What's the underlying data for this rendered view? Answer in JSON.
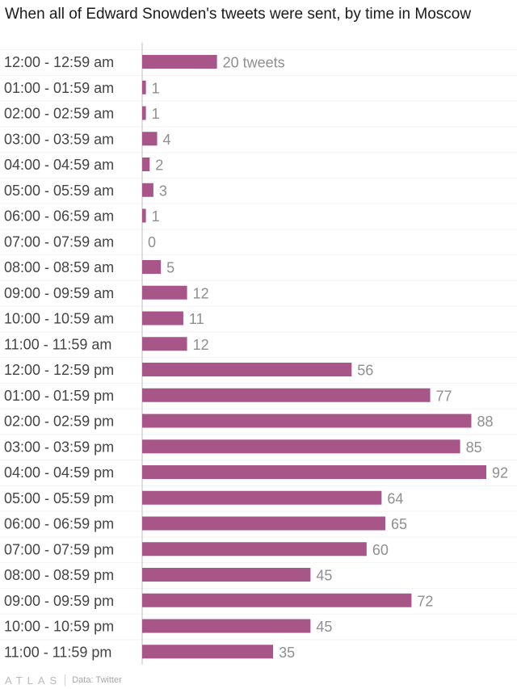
{
  "chart_data": {
    "type": "bar",
    "orientation": "horizontal",
    "title": "When all of Edward Snowden's tweets were sent, by time in Moscow",
    "unit_label": "tweets",
    "categories": [
      "12:00 - 12:59 am",
      "01:00 - 01:59 am",
      "02:00 - 02:59 am",
      "03:00 - 03:59 am",
      "04:00 - 04:59 am",
      "05:00 - 05:59 am",
      "06:00 - 06:59 am",
      "07:00 - 07:59 am",
      "08:00 - 08:59 am",
      "09:00 - 09:59 am",
      "10:00 - 10:59 am",
      "11:00 - 11:59 am",
      "12:00 - 12:59 pm",
      "01:00 - 01:59 pm",
      "02:00 - 02:59 pm",
      "03:00 - 03:59 pm",
      "04:00 - 04:59 pm",
      "05:00 - 05:59 pm",
      "06:00 - 06:59 pm",
      "07:00 - 07:59 pm",
      "08:00 - 08:59 pm",
      "09:00 - 09:59 pm",
      "10:00 - 10:59 pm",
      "11:00 - 11:59 pm"
    ],
    "values": [
      20,
      1,
      1,
      4,
      2,
      3,
      1,
      0,
      5,
      12,
      11,
      12,
      56,
      77,
      88,
      85,
      92,
      64,
      65,
      60,
      45,
      72,
      45,
      35
    ],
    "xlim": [
      0,
      92
    ],
    "bar_color": "#a8568a",
    "grid": true,
    "legend": "none"
  },
  "footer": {
    "brand": "ATLAS",
    "source": "Data: Twitter"
  }
}
